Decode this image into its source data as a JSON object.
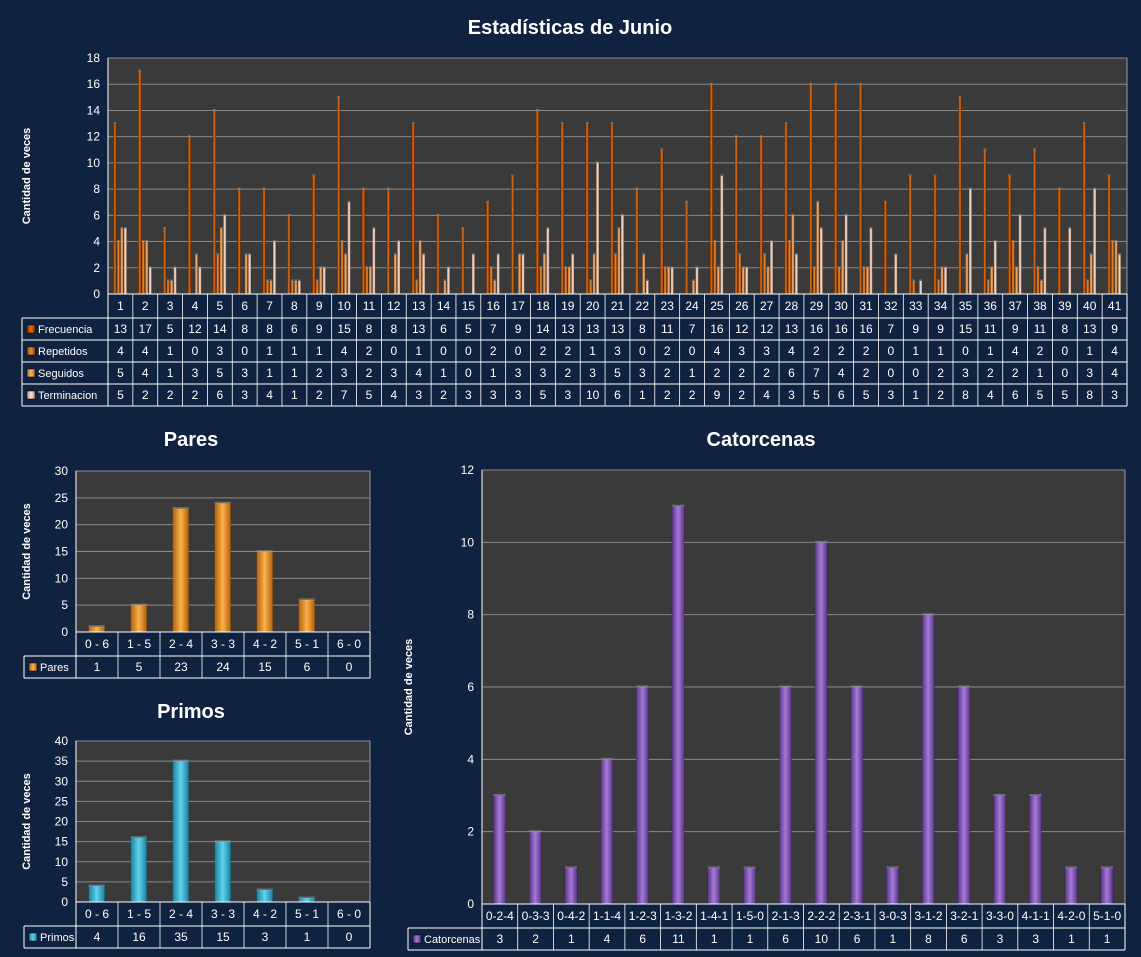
{
  "page_title": "Estadísticas de Junio",
  "colors": {
    "background": "#0f2340",
    "plot_bg": "#3a3a3a",
    "grid": "#8a8a8a",
    "frecuencia": "#d2620a",
    "repetidos": "#e07a1e",
    "seguidos": "#f0a060",
    "terminacion": "#f3cdb5",
    "pares": "#f29a2c",
    "primos": "#33b6d6",
    "catorcenas": "#8a5bbd"
  },
  "chart_data": [
    {
      "id": "junio",
      "type": "bar",
      "title": "Estadísticas de Junio",
      "ylabel": "Cantidad de veces",
      "ylim": [
        0,
        18
      ],
      "yticks": [
        0,
        2,
        4,
        6,
        8,
        10,
        12,
        14,
        16,
        18
      ],
      "grid": true,
      "legend": "table-below",
      "categories": [
        "1",
        "2",
        "3",
        "4",
        "5",
        "6",
        "7",
        "8",
        "9",
        "10",
        "11",
        "12",
        "13",
        "14",
        "15",
        "16",
        "17",
        "18",
        "19",
        "20",
        "21",
        "22",
        "23",
        "24",
        "25",
        "26",
        "27",
        "28",
        "29",
        "30",
        "31",
        "32",
        "33",
        "34",
        "35",
        "36",
        "37",
        "38",
        "39",
        "40",
        "41"
      ],
      "series": [
        {
          "name": "Frecuencia",
          "values": [
            13,
            17,
            5,
            12,
            14,
            8,
            8,
            6,
            9,
            15,
            8,
            8,
            13,
            6,
            5,
            7,
            9,
            14,
            13,
            13,
            13,
            8,
            11,
            7,
            16,
            12,
            12,
            13,
            16,
            16,
            16,
            7,
            9,
            9,
            15,
            11,
            9,
            11,
            8,
            13,
            9
          ]
        },
        {
          "name": "Repetidos",
          "values": [
            4,
            4,
            1,
            0,
            3,
            0,
            1,
            1,
            1,
            4,
            2,
            0,
            1,
            0,
            0,
            2,
            0,
            2,
            2,
            1,
            3,
            0,
            2,
            0,
            4,
            3,
            3,
            4,
            2,
            2,
            2,
            0,
            1,
            1,
            0,
            1,
            4,
            2,
            0,
            1,
            4
          ]
        },
        {
          "name": "Seguidos",
          "values": [
            5,
            4,
            1,
            3,
            5,
            3,
            1,
            1,
            2,
            3,
            2,
            3,
            4,
            1,
            0,
            1,
            3,
            3,
            2,
            3,
            5,
            3,
            2,
            1,
            2,
            2,
            2,
            6,
            7,
            4,
            2,
            0,
            0,
            2,
            3,
            2,
            2,
            1,
            0,
            3,
            4
          ]
        },
        {
          "name": "Terminacion",
          "values": [
            5,
            2,
            2,
            2,
            6,
            3,
            4,
            1,
            2,
            7,
            5,
            4,
            3,
            2,
            3,
            3,
            3,
            5,
            3,
            10,
            6,
            1,
            2,
            2,
            9,
            2,
            4,
            3,
            5,
            6,
            5,
            3,
            1,
            2,
            8,
            4,
            6,
            5,
            5,
            8,
            3
          ]
        }
      ]
    },
    {
      "id": "pares",
      "type": "bar",
      "title": "Pares",
      "ylabel": "Cantidad de veces",
      "ylim": [
        0,
        30
      ],
      "yticks": [
        0,
        5,
        10,
        15,
        20,
        25,
        30
      ],
      "grid": true,
      "legend": "table-below",
      "categories": [
        "0 - 6",
        "1 - 5",
        "2 - 4",
        "3 - 3",
        "4 - 2",
        "5 - 1",
        "6 - 0"
      ],
      "series": [
        {
          "name": "Pares",
          "values": [
            1,
            5,
            23,
            24,
            15,
            6,
            0
          ]
        }
      ]
    },
    {
      "id": "primos",
      "type": "bar",
      "title": "Primos",
      "ylabel": "Cantidad de veces",
      "ylim": [
        0,
        40
      ],
      "yticks": [
        0,
        5,
        10,
        15,
        20,
        25,
        30,
        35,
        40
      ],
      "grid": true,
      "legend": "table-below",
      "categories": [
        "0 - 6",
        "1 - 5",
        "2 - 4",
        "3 - 3",
        "4 - 2",
        "5 - 1",
        "6 - 0"
      ],
      "series": [
        {
          "name": "Primos",
          "values": [
            4,
            16,
            35,
            15,
            3,
            1,
            0
          ]
        }
      ]
    },
    {
      "id": "catorcenas",
      "type": "bar",
      "title": "Catorcenas",
      "ylabel": "Cantidad de veces",
      "ylim": [
        0,
        12
      ],
      "yticks": [
        0,
        2,
        4,
        6,
        8,
        10,
        12
      ],
      "grid": true,
      "legend": "table-below",
      "categories": [
        "0-2-4",
        "0-3-3",
        "0-4-2",
        "1-1-4",
        "1-2-3",
        "1-3-2",
        "1-4-1",
        "1-5-0",
        "2-1-3",
        "2-2-2",
        "2-3-1",
        "3-0-3",
        "3-1-2",
        "3-2-1",
        "3-3-0",
        "4-1-1",
        "4-2-0",
        "5-1-0"
      ],
      "series": [
        {
          "name": "Catorcenas",
          "values": [
            3,
            2,
            1,
            4,
            6,
            11,
            1,
            1,
            6,
            10,
            6,
            1,
            8,
            6,
            3,
            3,
            1,
            1
          ]
        }
      ]
    }
  ]
}
